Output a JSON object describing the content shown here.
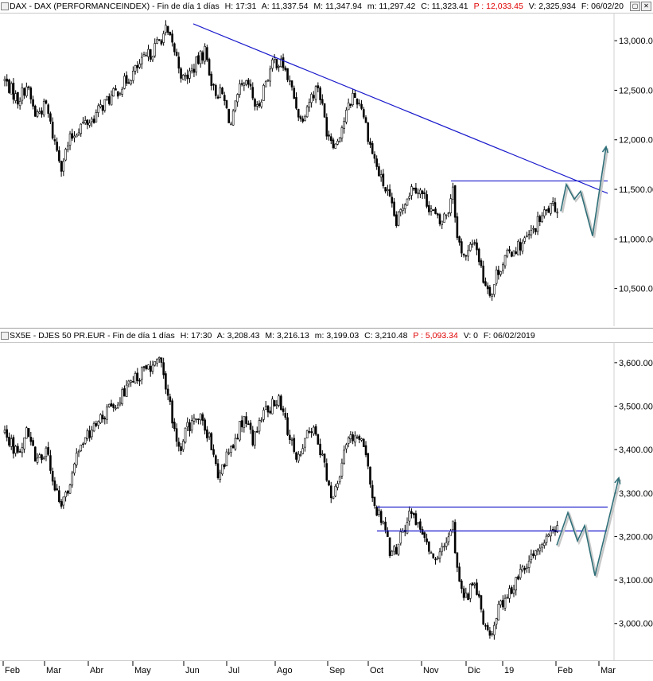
{
  "panels": [
    {
      "header": {
        "symbol": "DAX - DAX (PERFORMANCEINDEX) - Fin de día 1 días",
        "h": "H: 17:31",
        "a": "A: 11,337.54",
        "m": "M: 11,347.94",
        "mn": "m: 11,297.42",
        "c": "C: 11,323.41",
        "p": "P : 12,033.45",
        "v": "V: 2,325,934",
        "f": "F: 06/02/20"
      }
    },
    {
      "header": {
        "symbol": "SX5E - DJES 50 PR.EUR - Fin de día 1 días",
        "h": "H: 17:30",
        "a": "A: 3,208.43",
        "m": "M: 3,216.13",
        "mn": "m: 3,199.03",
        "c": "C: 3,210.48",
        "p": "P : 5,093.34",
        "v": "V: 0",
        "f": "F: 06/02/2019"
      }
    }
  ],
  "window_buttons": [
    "▢",
    "✕"
  ],
  "chart_data": [
    {
      "type": "candlestick",
      "title": "DAX - DAX (PERFORMANCEINDEX)",
      "ylim": [
        10200,
        13250
      ],
      "yticks": [
        "13,000.00",
        "12,500.00",
        "12,000.00",
        "11,500.00",
        "11,000.00",
        "10,500.00"
      ],
      "ytick_values": [
        13000,
        12500,
        12000,
        11500,
        11000,
        10500
      ],
      "x_months": [
        "Feb",
        "Mar",
        "Abr",
        "May",
        "Jun",
        "Jul",
        "Ago",
        "Sep",
        "Oct",
        "Nov",
        "Dic",
        "19",
        "Feb",
        "Mar"
      ],
      "anchors": [
        [
          0,
          12600
        ],
        [
          6,
          12400
        ],
        [
          10,
          12550
        ],
        [
          14,
          12250
        ],
        [
          19,
          12350
        ],
        [
          22,
          12050
        ],
        [
          26,
          11750
        ],
        [
          30,
          12000
        ],
        [
          35,
          12150
        ],
        [
          40,
          12200
        ],
        [
          45,
          12350
        ],
        [
          50,
          12450
        ],
        [
          56,
          12600
        ],
        [
          62,
          12750
        ],
        [
          68,
          12900
        ],
        [
          74,
          13100
        ],
        [
          78,
          12900
        ],
        [
          82,
          12600
        ],
        [
          86,
          12700
        ],
        [
          92,
          12900
        ],
        [
          96,
          12500
        ],
        [
          100,
          12450
        ],
        [
          104,
          12150
        ],
        [
          108,
          12500
        ],
        [
          112,
          12550
        ],
        [
          116,
          12300
        ],
        [
          120,
          12600
        ],
        [
          124,
          12800
        ],
        [
          128,
          12750
        ],
        [
          132,
          12500
        ],
        [
          136,
          12200
        ],
        [
          140,
          12400
        ],
        [
          144,
          12550
        ],
        [
          148,
          12100
        ],
        [
          152,
          11950
        ],
        [
          156,
          12200
        ],
        [
          160,
          12450
        ],
        [
          164,
          12350
        ],
        [
          168,
          11950
        ],
        [
          172,
          11650
        ],
        [
          176,
          11450
        ],
        [
          180,
          11150
        ],
        [
          184,
          11400
        ],
        [
          188,
          11550
        ],
        [
          192,
          11450
        ],
        [
          196,
          11300
        ],
        [
          200,
          11150
        ],
        [
          204,
          11300
        ],
        [
          206,
          11550
        ],
        [
          208,
          11000
        ],
        [
          212,
          10800
        ],
        [
          216,
          11000
        ],
        [
          220,
          10600
        ],
        [
          224,
          10450
        ],
        [
          226,
          10650
        ],
        [
          230,
          10800
        ],
        [
          234,
          10900
        ],
        [
          238,
          10950
        ],
        [
          242,
          11050
        ],
        [
          246,
          11200
        ],
        [
          250,
          11300
        ],
        [
          254,
          11320
        ]
      ],
      "trendlines": [
        {
          "from": [
            243,
            13170
          ],
          "to": [
            764,
            11460
          ],
          "label": "resistance"
        },
        {
          "from": [
            567,
            11585
          ],
          "to": [
            764,
            11585
          ],
          "label": "horizontal"
        }
      ],
      "projection": [
        [
          705,
          11280
        ],
        [
          712,
          11550
        ],
        [
          722,
          11400
        ],
        [
          730,
          11480
        ],
        [
          745,
          11030
        ],
        [
          762,
          11930
        ]
      ]
    },
    {
      "type": "candlestick",
      "title": "SX5E - DJES 50 PR.EUR",
      "ylim": [
        2930,
        3640
      ],
      "yticks": [
        "3,600.00",
        "3,500.00",
        "3,400.00",
        "3,300.00",
        "3,200.00",
        "3,100.00",
        "3,000.00"
      ],
      "ytick_values": [
        3600,
        3500,
        3400,
        3300,
        3200,
        3100,
        3000
      ],
      "x_months": [
        "Feb",
        "Mar",
        "Abr",
        "May",
        "Jun",
        "Jul",
        "Ago",
        "Sep",
        "Oct",
        "Nov",
        "Dic",
        "19",
        "Feb",
        "Mar"
      ],
      "anchors": [
        [
          0,
          3440
        ],
        [
          6,
          3390
        ],
        [
          10,
          3450
        ],
        [
          14,
          3380
        ],
        [
          19,
          3400
        ],
        [
          22,
          3320
        ],
        [
          26,
          3270
        ],
        [
          30,
          3330
        ],
        [
          35,
          3410
        ],
        [
          40,
          3440
        ],
        [
          45,
          3480
        ],
        [
          50,
          3500
        ],
        [
          56,
          3540
        ],
        [
          62,
          3570
        ],
        [
          68,
          3590
        ],
        [
          72,
          3600
        ],
        [
          76,
          3500
        ],
        [
          80,
          3400
        ],
        [
          84,
          3450
        ],
        [
          90,
          3470
        ],
        [
          94,
          3430
        ],
        [
          98,
          3350
        ],
        [
          102,
          3380
        ],
        [
          106,
          3430
        ],
        [
          110,
          3470
        ],
        [
          114,
          3420
        ],
        [
          118,
          3480
        ],
        [
          122,
          3500
        ],
        [
          126,
          3510
        ],
        [
          130,
          3450
        ],
        [
          134,
          3370
        ],
        [
          138,
          3420
        ],
        [
          142,
          3460
        ],
        [
          146,
          3380
        ],
        [
          150,
          3290
        ],
        [
          154,
          3350
        ],
        [
          158,
          3420
        ],
        [
          162,
          3440
        ],
        [
          166,
          3390
        ],
        [
          170,
          3270
        ],
        [
          174,
          3230
        ],
        [
          178,
          3150
        ],
        [
          182,
          3200
        ],
        [
          186,
          3250
        ],
        [
          190,
          3240
        ],
        [
          194,
          3190
        ],
        [
          198,
          3140
        ],
        [
          202,
          3180
        ],
        [
          206,
          3230
        ],
        [
          208,
          3120
        ],
        [
          212,
          3060
        ],
        [
          216,
          3100
        ],
        [
          220,
          3010
        ],
        [
          224,
          2970
        ],
        [
          226,
          3020
        ],
        [
          230,
          3060
        ],
        [
          234,
          3090
        ],
        [
          238,
          3120
        ],
        [
          242,
          3150
        ],
        [
          246,
          3170
        ],
        [
          250,
          3200
        ],
        [
          254,
          3210
        ]
      ],
      "trendlines": [
        {
          "from": [
            474,
            3268
          ],
          "to": [
            764,
            3268
          ],
          "label": "upper"
        },
        {
          "from": [
            474,
            3213
          ],
          "to": [
            764,
            3213
          ],
          "label": "lower"
        }
      ],
      "projection": [
        [
          700,
          3180
        ],
        [
          714,
          3255
        ],
        [
          726,
          3190
        ],
        [
          735,
          3225
        ],
        [
          748,
          3110
        ],
        [
          778,
          3335
        ]
      ]
    }
  ]
}
